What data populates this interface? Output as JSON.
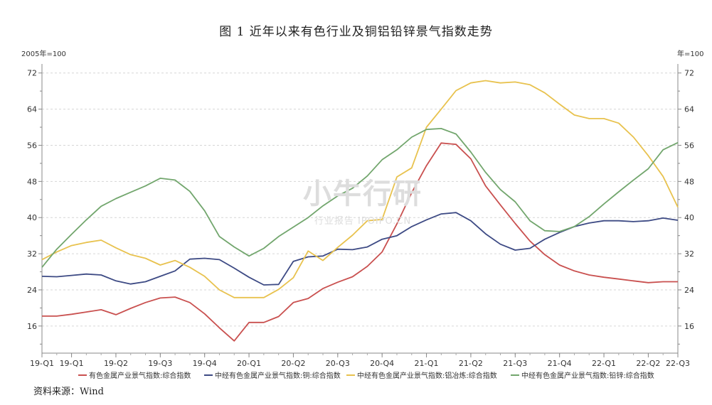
{
  "title": "图 1   近年以来有色行业及铜铝铅锌景气指数走势",
  "source": "资料来源：Wind",
  "watermark": {
    "main": "小牛行研",
    "sub": "行业报告 IPOIPO.CN"
  },
  "chart_data": {
    "type": "line",
    "title": "图 1   近年以来有色行业及铜铝铅锌景气指数走势",
    "left_unit": "2005年=100",
    "right_unit": "年=100",
    "ylim": [
      10,
      74
    ],
    "yticks": [
      16,
      24,
      32,
      40,
      48,
      56,
      64,
      72
    ],
    "x_range": [
      0,
      43
    ],
    "xticks": [
      {
        "x": 0,
        "label": "19-Q1"
      },
      {
        "x": 2,
        "label": "19-Q1"
      },
      {
        "x": 5,
        "label": "19-Q2"
      },
      {
        "x": 8,
        "label": "19-Q3"
      },
      {
        "x": 11,
        "label": "19-Q4"
      },
      {
        "x": 14,
        "label": "20-Q1"
      },
      {
        "x": 17,
        "label": "20-Q2"
      },
      {
        "x": 20,
        "label": "20-Q3"
      },
      {
        "x": 23,
        "label": "20-Q4"
      },
      {
        "x": 26,
        "label": "21-Q1"
      },
      {
        "x": 29,
        "label": "21-Q2"
      },
      {
        "x": 32,
        "label": "21-Q3"
      },
      {
        "x": 35,
        "label": "21-Q4"
      },
      {
        "x": 38,
        "label": "22-Q1"
      },
      {
        "x": 41,
        "label": "22-Q2"
      },
      {
        "x": 43,
        "label": "22-Q3"
      }
    ],
    "grid": true,
    "legend_position": "bottom",
    "series": [
      {
        "name": "有色金属产业景气指数:综合指数",
        "color": "#c9504f",
        "points": [
          [
            0,
            18.2
          ],
          [
            1,
            18.2
          ],
          [
            2,
            18.6
          ],
          [
            3,
            19.1
          ],
          [
            4,
            19.6
          ],
          [
            5,
            18.5
          ],
          [
            6,
            19.9
          ],
          [
            7,
            21.2
          ],
          [
            8,
            22.2
          ],
          [
            9,
            22.4
          ],
          [
            10,
            21.2
          ],
          [
            11,
            18.7
          ],
          [
            12,
            15.6
          ],
          [
            13,
            12.7
          ],
          [
            14,
            16.8
          ],
          [
            15,
            16.8
          ],
          [
            16,
            18.1
          ],
          [
            17,
            21.2
          ],
          [
            18,
            22.1
          ],
          [
            19,
            24.3
          ],
          [
            20,
            25.7
          ],
          [
            21,
            26.9
          ],
          [
            22,
            29.2
          ],
          [
            23,
            32.4
          ],
          [
            24,
            38.6
          ],
          [
            25,
            45.5
          ],
          [
            26,
            51.5
          ],
          [
            27,
            56.5
          ],
          [
            28,
            56.2
          ],
          [
            29,
            53
          ],
          [
            30,
            47
          ],
          [
            31,
            42.8
          ],
          [
            32,
            38.7
          ],
          [
            33,
            34.8
          ],
          [
            34,
            31.8
          ],
          [
            35,
            29.5
          ],
          [
            36,
            28.2
          ],
          [
            37,
            27.3
          ],
          [
            38,
            26.8
          ],
          [
            39,
            26.4
          ],
          [
            40,
            26
          ],
          [
            41,
            25.6
          ],
          [
            42,
            25.8
          ],
          [
            43,
            25.8
          ]
        ]
      },
      {
        "name": "中经有色金属产业景气指数:铜:综合指数",
        "color": "#3d4a84",
        "points": [
          [
            0,
            27
          ],
          [
            1,
            26.9
          ],
          [
            2,
            27.2
          ],
          [
            3,
            27.5
          ],
          [
            4,
            27.3
          ],
          [
            5,
            26
          ],
          [
            6,
            25.3
          ],
          [
            7,
            25.8
          ],
          [
            8,
            27
          ],
          [
            9,
            28.2
          ],
          [
            10,
            30.8
          ],
          [
            11,
            31
          ],
          [
            12,
            30.7
          ],
          [
            13,
            28.8
          ],
          [
            14,
            26.8
          ],
          [
            15,
            25.1
          ],
          [
            16,
            25.2
          ],
          [
            17,
            30.3
          ],
          [
            18,
            31.3
          ],
          [
            19,
            31.5
          ],
          [
            20,
            33
          ],
          [
            21,
            32.9
          ],
          [
            22,
            33.5
          ],
          [
            23,
            35.2
          ],
          [
            24,
            36
          ],
          [
            25,
            38
          ],
          [
            26,
            39.5
          ],
          [
            27,
            40.8
          ],
          [
            28,
            41.1
          ],
          [
            29,
            39.3
          ],
          [
            30,
            36.4
          ],
          [
            31,
            34.1
          ],
          [
            32,
            32.8
          ],
          [
            33,
            33.2
          ],
          [
            34,
            35.2
          ],
          [
            35,
            36.7
          ],
          [
            36,
            38
          ],
          [
            37,
            38.8
          ],
          [
            38,
            39.3
          ],
          [
            39,
            39.3
          ],
          [
            40,
            39.1
          ],
          [
            41,
            39.3
          ],
          [
            42,
            39.9
          ],
          [
            43,
            39.4
          ]
        ]
      },
      {
        "name": "中经有色金属产业景气指数:铝冶炼:综合指数",
        "color": "#e8c24e",
        "points": [
          [
            0,
            30.7
          ],
          [
            1,
            32.4
          ],
          [
            2,
            33.8
          ],
          [
            3,
            34.5
          ],
          [
            4,
            35
          ],
          [
            5,
            33.3
          ],
          [
            6,
            31.8
          ],
          [
            7,
            31
          ],
          [
            8,
            29.5
          ],
          [
            9,
            30.5
          ],
          [
            10,
            29
          ],
          [
            11,
            27
          ],
          [
            12,
            24
          ],
          [
            13,
            22.3
          ],
          [
            14,
            22.3
          ],
          [
            15,
            22.3
          ],
          [
            16,
            24.1
          ],
          [
            17,
            26.7
          ],
          [
            18,
            32.6
          ],
          [
            19,
            30.5
          ],
          [
            20,
            33.4
          ],
          [
            21,
            36.1
          ],
          [
            22,
            39.3
          ],
          [
            23,
            39.6
          ],
          [
            24,
            49
          ],
          [
            25,
            51
          ],
          [
            26,
            60
          ],
          [
            27,
            64
          ],
          [
            28,
            68.1
          ],
          [
            29,
            69.8
          ],
          [
            30,
            70.3
          ],
          [
            31,
            69.8
          ],
          [
            32,
            70
          ],
          [
            33,
            69.4
          ],
          [
            34,
            67.6
          ],
          [
            35,
            65.1
          ],
          [
            36,
            62.7
          ],
          [
            37,
            61.9
          ],
          [
            38,
            61.9
          ],
          [
            39,
            60.9
          ],
          [
            40,
            57.8
          ],
          [
            41,
            53.7
          ],
          [
            42,
            49.1
          ],
          [
            43,
            42.3
          ]
        ]
      },
      {
        "name": "中经有色金属产业景气指数:铅锌:综合指数",
        "color": "#72a66d",
        "points": [
          [
            0,
            29
          ],
          [
            1,
            33
          ],
          [
            2,
            36.3
          ],
          [
            3,
            39.5
          ],
          [
            4,
            42.5
          ],
          [
            5,
            44.2
          ],
          [
            6,
            45.6
          ],
          [
            7,
            47
          ],
          [
            8,
            48.7
          ],
          [
            9,
            48.3
          ],
          [
            10,
            45.8
          ],
          [
            11,
            41.5
          ],
          [
            12,
            35.8
          ],
          [
            13,
            33.5
          ],
          [
            14,
            31.5
          ],
          [
            15,
            33.2
          ],
          [
            16,
            35.8
          ],
          [
            17,
            37.9
          ],
          [
            18,
            40
          ],
          [
            19,
            42.6
          ],
          [
            20,
            44.8
          ],
          [
            21,
            46.5
          ],
          [
            22,
            49.2
          ],
          [
            23,
            52.8
          ],
          [
            24,
            55
          ],
          [
            25,
            57.8
          ],
          [
            26,
            59.5
          ],
          [
            27,
            59.7
          ],
          [
            28,
            58.5
          ],
          [
            29,
            54.5
          ],
          [
            30,
            50
          ],
          [
            31,
            46.2
          ],
          [
            32,
            43.5
          ],
          [
            33,
            39.3
          ],
          [
            34,
            37.1
          ],
          [
            35,
            36.9
          ],
          [
            36,
            38
          ],
          [
            37,
            40.2
          ],
          [
            38,
            43
          ],
          [
            39,
            45.7
          ],
          [
            40,
            48.3
          ],
          [
            41,
            50.8
          ],
          [
            42,
            55
          ],
          [
            43,
            56.6
          ]
        ]
      }
    ]
  }
}
